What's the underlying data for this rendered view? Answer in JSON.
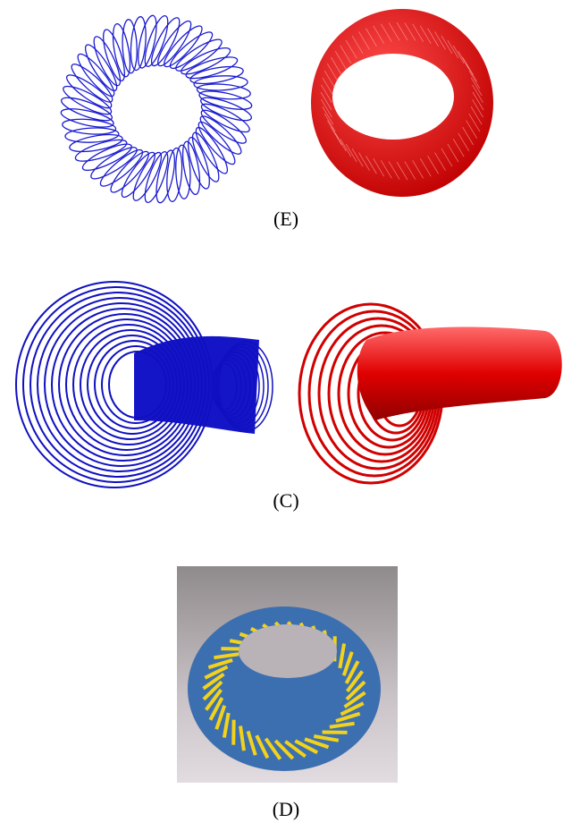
{
  "figure": {
    "panels": [
      {
        "label": "(E)"
      },
      {
        "label": "(C)"
      },
      {
        "label": "(D)"
      }
    ]
  }
}
